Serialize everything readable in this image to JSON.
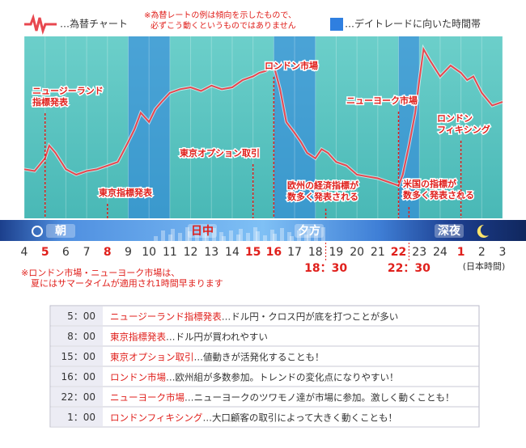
{
  "chart_data": {
    "type": "line",
    "note_top": [
      "※為替レートの例は傾向を示したもので、",
      "必ずこう動くというものではありません"
    ],
    "band_legend": "…デイトレードに向いた時間帯",
    "band_color": "#2f7fe0",
    "background_color": "#5cc6c2",
    "x": [
      4,
      4.5,
      5,
      5.2,
      5.5,
      6,
      6.5,
      7,
      7.5,
      8,
      8.5,
      9,
      9.3,
      9.6,
      10,
      10.3,
      10.6,
      11,
      11.5,
      12,
      12.5,
      13,
      13.5,
      14,
      14.5,
      15,
      15.3,
      15.6,
      16,
      16.3,
      16.6,
      17,
      17.3,
      17.6,
      18,
      18.3,
      18.6,
      19,
      19.5,
      20,
      20.5,
      21,
      21.5,
      22,
      22.2,
      22.5,
      22.8,
      23,
      23.2,
      23.5,
      24,
      24.5,
      25,
      25.3,
      25.6,
      26,
      26.5,
      27
    ],
    "series": [
      {
        "name": "…為替チャート",
        "color": "#e8474f",
        "values": [
          27,
          26,
          33,
          40,
          36,
          27,
          24,
          26,
          27,
          29,
          31,
          42,
          49,
          58,
          53,
          60,
          64,
          69,
          71,
          72,
          70,
          73,
          71,
          72,
          76,
          78,
          80,
          81,
          84,
          71,
          53,
          47,
          42,
          36,
          33,
          38,
          36,
          31,
          29,
          24,
          23,
          22,
          20,
          18,
          24,
          40,
          58,
          76,
          93,
          87,
          78,
          84,
          80,
          76,
          78,
          69,
          62,
          64
        ]
      }
    ],
    "xlim": [
      4,
      27
    ],
    "ylim": [
      0,
      100
    ],
    "xticks": [
      4,
      5,
      6,
      7,
      8,
      9,
      10,
      11,
      12,
      13,
      14,
      15,
      16,
      17,
      18,
      19,
      20,
      21,
      22,
      23,
      24,
      {
        "value": 25,
        "label": "1"
      },
      {
        "value": 26,
        "label": "2"
      },
      {
        "value": 27,
        "label": "3"
      }
    ],
    "highlight_ticks": [
      5,
      8,
      15,
      16,
      22,
      25
    ],
    "highlight_color": "#e0201c",
    "daytrade_bands": [
      [
        9,
        11
      ],
      [
        16,
        18
      ],
      [
        22,
        23
      ]
    ],
    "periods": [
      "朝",
      "日中",
      "夕方",
      "深夜"
    ],
    "time_marks": [
      {
        "value": 18.5,
        "label": "18：30"
      },
      {
        "value": 22.5,
        "label": "22：30"
      }
    ],
    "timezone_label": "(日本時間)",
    "annotations": [
      {
        "x": 5,
        "lines": [
          "ニュージーランド",
          "指標発表"
        ]
      },
      {
        "x": 8,
        "lines": [
          "東京指標発表"
        ]
      },
      {
        "x": 15,
        "lines": [
          "東京オプション取引"
        ]
      },
      {
        "x": 16,
        "lines": [
          "ロンドン市場"
        ]
      },
      {
        "x": 18.5,
        "lines": [
          "欧州の経済指標が",
          "数多く発表される"
        ]
      },
      {
        "x": 22,
        "lines": [
          "ニューヨーク市場"
        ]
      },
      {
        "x": 22.5,
        "lines": [
          "米国の指標が",
          "数多く発表される"
        ]
      },
      {
        "x": 25,
        "lines": [
          "ロンドン",
          "フィキシング"
        ]
      }
    ],
    "note_bottom": [
      "※ロンドン市場・ニューヨーク市場は、",
      "夏にはサマータイムが適用され1時間早まります"
    ]
  },
  "table": {
    "rows": [
      [
        "5：00",
        "ニュージーランド指標発表",
        "…ドル円・クロス円が底を打つことが多い"
      ],
      [
        "8：00",
        "東京指標発表",
        "…ドル円が買われやすい"
      ],
      [
        "15：00",
        "東京オプション取引",
        "…値動きが活発化することも！"
      ],
      [
        "16：00",
        "ロンドン市場",
        "…欧州組が多数参加。トレンドの変化点になりやすい！"
      ],
      [
        "22：00",
        "ニューヨーク市場",
        "…ニューヨークのツワモノ達が市場に参加。激しく動くことも！"
      ],
      [
        "1：00",
        "ロンドンフィキシング",
        "…大口顧客の取引によって大きく動くことも！"
      ]
    ]
  }
}
